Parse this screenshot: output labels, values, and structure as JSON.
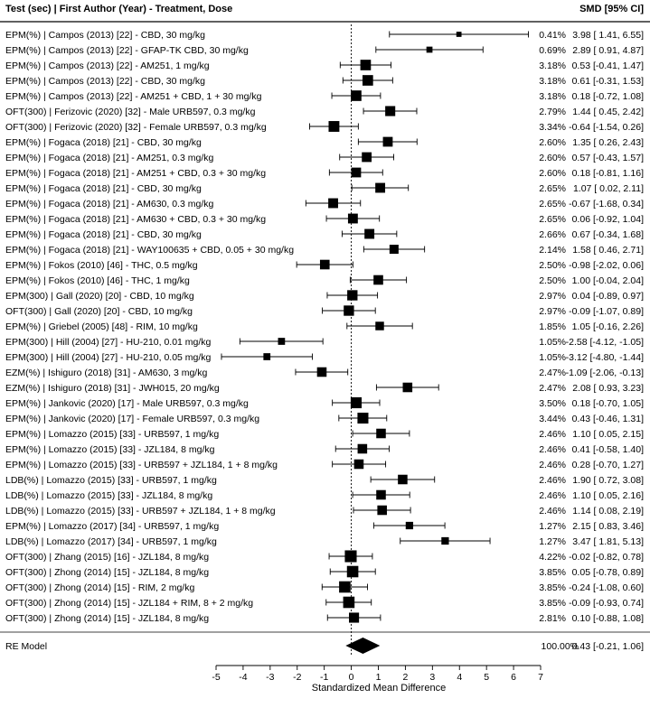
{
  "chart_data": {
    "type": "forest",
    "header": {
      "left": "Test (sec) | First Author (Year) - Treatment, Dose",
      "right": "SMD [95% CI]"
    },
    "xlabel": "Standardized Mean Difference",
    "xlim": [
      -5,
      7
    ],
    "xticks": [
      -5,
      -4,
      -3,
      -2,
      -1,
      0,
      1,
      2,
      3,
      4,
      5,
      6,
      7
    ],
    "reference_line": 0,
    "studies": [
      {
        "label": "EPM(%) | Campos (2013) [22] - CBD, 30 mg/kg",
        "weight": "0.41%",
        "smd": 3.98,
        "lo": 1.41,
        "hi": 6.55,
        "ci_text": "3.98 [ 1.41, 6.55]"
      },
      {
        "label": "EPM(%) | Campos (2013) [22] - GFAP-TK CBD, 30 mg/kg",
        "weight": "0.69%",
        "smd": 2.89,
        "lo": 0.91,
        "hi": 4.87,
        "ci_text": "2.89 [ 0.91, 4.87]"
      },
      {
        "label": "EPM(%) | Campos (2013) [22] - AM251, 1 mg/kg",
        "weight": "3.18%",
        "smd": 0.53,
        "lo": -0.41,
        "hi": 1.47,
        "ci_text": "0.53 [-0.41, 1.47]"
      },
      {
        "label": "EPM(%) | Campos (2013) [22] - CBD, 30 mg/kg",
        "weight": "3.18%",
        "smd": 0.61,
        "lo": -0.31,
        "hi": 1.53,
        "ci_text": "0.61 [-0.31, 1.53]"
      },
      {
        "label": "EPM(%) | Campos (2013) [22] - AM251 + CBD, 1 + 30 mg/kg",
        "weight": "3.18%",
        "smd": 0.18,
        "lo": -0.72,
        "hi": 1.08,
        "ci_text": "0.18 [-0.72, 1.08]"
      },
      {
        "label": "OFT(300) | Ferizovic (2020) [32] - Male URB597, 0.3 mg/kg",
        "weight": "2.79%",
        "smd": 1.44,
        "lo": 0.45,
        "hi": 2.42,
        "ci_text": "1.44 [ 0.45, 2.42]"
      },
      {
        "label": "OFT(300) | Ferizovic (2020) [32] - Female URB597, 0.3 mg/kg",
        "weight": "3.34%",
        "smd": -0.64,
        "lo": -1.54,
        "hi": 0.26,
        "ci_text": "-0.64 [-1.54, 0.26]"
      },
      {
        "label": "EPM(%) | Fogaca (2018) [21] - CBD, 30 mg/kg",
        "weight": "2.60%",
        "smd": 1.35,
        "lo": 0.26,
        "hi": 2.43,
        "ci_text": "1.35 [ 0.26, 2.43]"
      },
      {
        "label": "EPM(%) | Fogaca (2018) [21] - AM251, 0.3 mg/kg",
        "weight": "2.60%",
        "smd": 0.57,
        "lo": -0.43,
        "hi": 1.57,
        "ci_text": "0.57 [-0.43, 1.57]"
      },
      {
        "label": "EPM(%) | Fogaca (2018) [21] - AM251 + CBD, 0.3 + 30 mg/kg",
        "weight": "2.60%",
        "smd": 0.18,
        "lo": -0.81,
        "hi": 1.16,
        "ci_text": "0.18 [-0.81, 1.16]"
      },
      {
        "label": "EPM(%) | Fogaca (2018) [21] - CBD, 30 mg/kg",
        "weight": "2.65%",
        "smd": 1.07,
        "lo": 0.02,
        "hi": 2.11,
        "ci_text": "1.07 [ 0.02, 2.11]"
      },
      {
        "label": "EPM(%) | Fogaca (2018) [21] - AM630, 0.3 mg/kg",
        "weight": "2.65%",
        "smd": -0.67,
        "lo": -1.68,
        "hi": 0.34,
        "ci_text": "-0.67 [-1.68, 0.34]"
      },
      {
        "label": "EPM(%) | Fogaca (2018) [21] - AM630 + CBD, 0.3 + 30 mg/kg",
        "weight": "2.65%",
        "smd": 0.06,
        "lo": -0.92,
        "hi": 1.04,
        "ci_text": "0.06 [-0.92, 1.04]"
      },
      {
        "label": "EPM(%) | Fogaca (2018) [21] - CBD, 30 mg/kg",
        "weight": "2.66%",
        "smd": 0.67,
        "lo": -0.34,
        "hi": 1.68,
        "ci_text": "0.67 [-0.34, 1.68]"
      },
      {
        "label": "EPM(%) | Fogaca (2018) [21] - WAY100635 + CBD, 0.05 + 30 mg/kg",
        "weight": "2.14%",
        "smd": 1.58,
        "lo": 0.46,
        "hi": 2.71,
        "ci_text": "1.58 [ 0.46, 2.71]"
      },
      {
        "label": "EPM(%) | Fokos (2010) [46] - THC, 0.5 mg/kg",
        "weight": "2.50%",
        "smd": -0.98,
        "lo": -2.02,
        "hi": 0.06,
        "ci_text": "-0.98 [-2.02, 0.06]"
      },
      {
        "label": "EPM(%) | Fokos (2010) [46] - THC, 1 mg/kg",
        "weight": "2.50%",
        "smd": 1.0,
        "lo": -0.04,
        "hi": 2.04,
        "ci_text": "1.00 [-0.04, 2.04]"
      },
      {
        "label": "EPM(300) | Gall (2020) [20] - CBD, 10 mg/kg",
        "weight": "2.97%",
        "smd": 0.04,
        "lo": -0.89,
        "hi": 0.97,
        "ci_text": "0.04 [-0.89, 0.97]"
      },
      {
        "label": "OFT(300) | Gall (2020) [20] - CBD, 10 mg/kg",
        "weight": "2.97%",
        "smd": -0.09,
        "lo": -1.07,
        "hi": 0.89,
        "ci_text": "-0.09 [-1.07, 0.89]"
      },
      {
        "label": "EPM(%) | Griebel (2005) [48] - RIM, 10 mg/kg",
        "weight": "1.85%",
        "smd": 1.05,
        "lo": -0.16,
        "hi": 2.26,
        "ci_text": "1.05 [-0.16, 2.26]"
      },
      {
        "label": "EPM(300) | Hill (2004) [27] - HU-210, 0.01 mg/kg",
        "weight": "1.05%",
        "smd": -2.58,
        "lo": -4.12,
        "hi": -1.05,
        "ci_text": "-2.58 [-4.12, -1.05]"
      },
      {
        "label": "EPM(300) | Hill (2004) [27] - HU-210, 0.05 mg/kg",
        "weight": "1.05%",
        "smd": -3.12,
        "lo": -4.8,
        "hi": -1.44,
        "ci_text": "-3.12 [-4.80, -1.44]"
      },
      {
        "label": "EZM(%) | Ishiguro (2018) [31] - AM630, 3 mg/kg",
        "weight": "2.47%",
        "smd": -1.09,
        "lo": -2.06,
        "hi": -0.13,
        "ci_text": "-1.09 [-2.06, -0.13]"
      },
      {
        "label": "EZM(%) | Ishiguro (2018) [31] - JWH015, 20 mg/kg",
        "weight": "2.47%",
        "smd": 2.08,
        "lo": 0.93,
        "hi": 3.23,
        "ci_text": "2.08 [ 0.93, 3.23]"
      },
      {
        "label": "EPM(%) | Jankovic (2020) [17] - Male URB597, 0.3 mg/kg",
        "weight": "3.50%",
        "smd": 0.18,
        "lo": -0.7,
        "hi": 1.05,
        "ci_text": "0.18 [-0.70, 1.05]"
      },
      {
        "label": "EPM(%) | Jankovic (2020) [17] - Female URB597, 0.3 mg/kg",
        "weight": "3.44%",
        "smd": 0.43,
        "lo": -0.46,
        "hi": 1.31,
        "ci_text": "0.43 [-0.46, 1.31]"
      },
      {
        "label": "EPM(%) | Lomazzo (2015) [33] - URB597, 1 mg/kg",
        "weight": "2.46%",
        "smd": 1.1,
        "lo": 0.05,
        "hi": 2.15,
        "ci_text": "1.10 [ 0.05, 2.15]"
      },
      {
        "label": "EPM(%) | Lomazzo (2015) [33] - JZL184, 8 mg/kg",
        "weight": "2.46%",
        "smd": 0.41,
        "lo": -0.58,
        "hi": 1.4,
        "ci_text": "0.41 [-0.58, 1.40]"
      },
      {
        "label": "EPM(%) | Lomazzo (2015) [33] - URB597 + JZL184, 1 + 8 mg/kg",
        "weight": "2.46%",
        "smd": 0.28,
        "lo": -0.7,
        "hi": 1.27,
        "ci_text": "0.28 [-0.70, 1.27]"
      },
      {
        "label": "LDB(%) | Lomazzo (2015) [33] - URB597, 1 mg/kg",
        "weight": "2.46%",
        "smd": 1.9,
        "lo": 0.72,
        "hi": 3.08,
        "ci_text": "1.90 [ 0.72, 3.08]"
      },
      {
        "label": "LDB(%) | Lomazzo (2015) [33] - JZL184, 8 mg/kg",
        "weight": "2.46%",
        "smd": 1.1,
        "lo": 0.05,
        "hi": 2.16,
        "ci_text": "1.10 [ 0.05, 2.16]"
      },
      {
        "label": "LDB(%) | Lomazzo (2015) [33] - URB597 + JZL184, 1 + 8 mg/kg",
        "weight": "2.46%",
        "smd": 1.14,
        "lo": 0.08,
        "hi": 2.19,
        "ci_text": "1.14 [ 0.08, 2.19]"
      },
      {
        "label": "EPM(%) | Lomazzo (2017) [34] - URB597, 1 mg/kg",
        "weight": "1.27%",
        "smd": 2.15,
        "lo": 0.83,
        "hi": 3.46,
        "ci_text": "2.15 [ 0.83, 3.46]"
      },
      {
        "label": "LDB(%) | Lomazzo (2017) [34] - URB597, 1 mg/kg",
        "weight": "1.27%",
        "smd": 3.47,
        "lo": 1.81,
        "hi": 5.13,
        "ci_text": "3.47 [ 1.81, 5.13]"
      },
      {
        "label": "OFT(300) | Zhang (2015) [16] - JZL184, 8 mg/kg",
        "weight": "4.22%",
        "smd": -0.02,
        "lo": -0.82,
        "hi": 0.78,
        "ci_text": "-0.02 [-0.82, 0.78]"
      },
      {
        "label": "OFT(300) | Zhong (2014) [15] - JZL184, 8 mg/kg",
        "weight": "3.85%",
        "smd": 0.05,
        "lo": -0.78,
        "hi": 0.89,
        "ci_text": "0.05 [-0.78, 0.89]"
      },
      {
        "label": "OFT(300) | Zhong (2014) [15] - RIM, 2 mg/kg",
        "weight": "3.85%",
        "smd": -0.24,
        "lo": -1.08,
        "hi": 0.6,
        "ci_text": "-0.24 [-1.08, 0.60]"
      },
      {
        "label": "OFT(300) | Zhong (2014) [15] - JZL184 + RIM, 8 + 2 mg/kg",
        "weight": "3.85%",
        "smd": -0.09,
        "lo": -0.93,
        "hi": 0.74,
        "ci_text": "-0.09 [-0.93, 0.74]"
      },
      {
        "label": "OFT(300) | Zhong (2014) [15] - JZL184, 8 mg/kg",
        "weight": "2.81%",
        "smd": 0.1,
        "lo": -0.88,
        "hi": 1.08,
        "ci_text": "0.10 [-0.88, 1.08]"
      }
    ],
    "summary": {
      "label": "RE Model",
      "weight": "100.00%",
      "smd": 0.43,
      "lo": -0.21,
      "hi": 1.06,
      "ci_text": "0.43 [-0.21, 1.06]"
    }
  }
}
